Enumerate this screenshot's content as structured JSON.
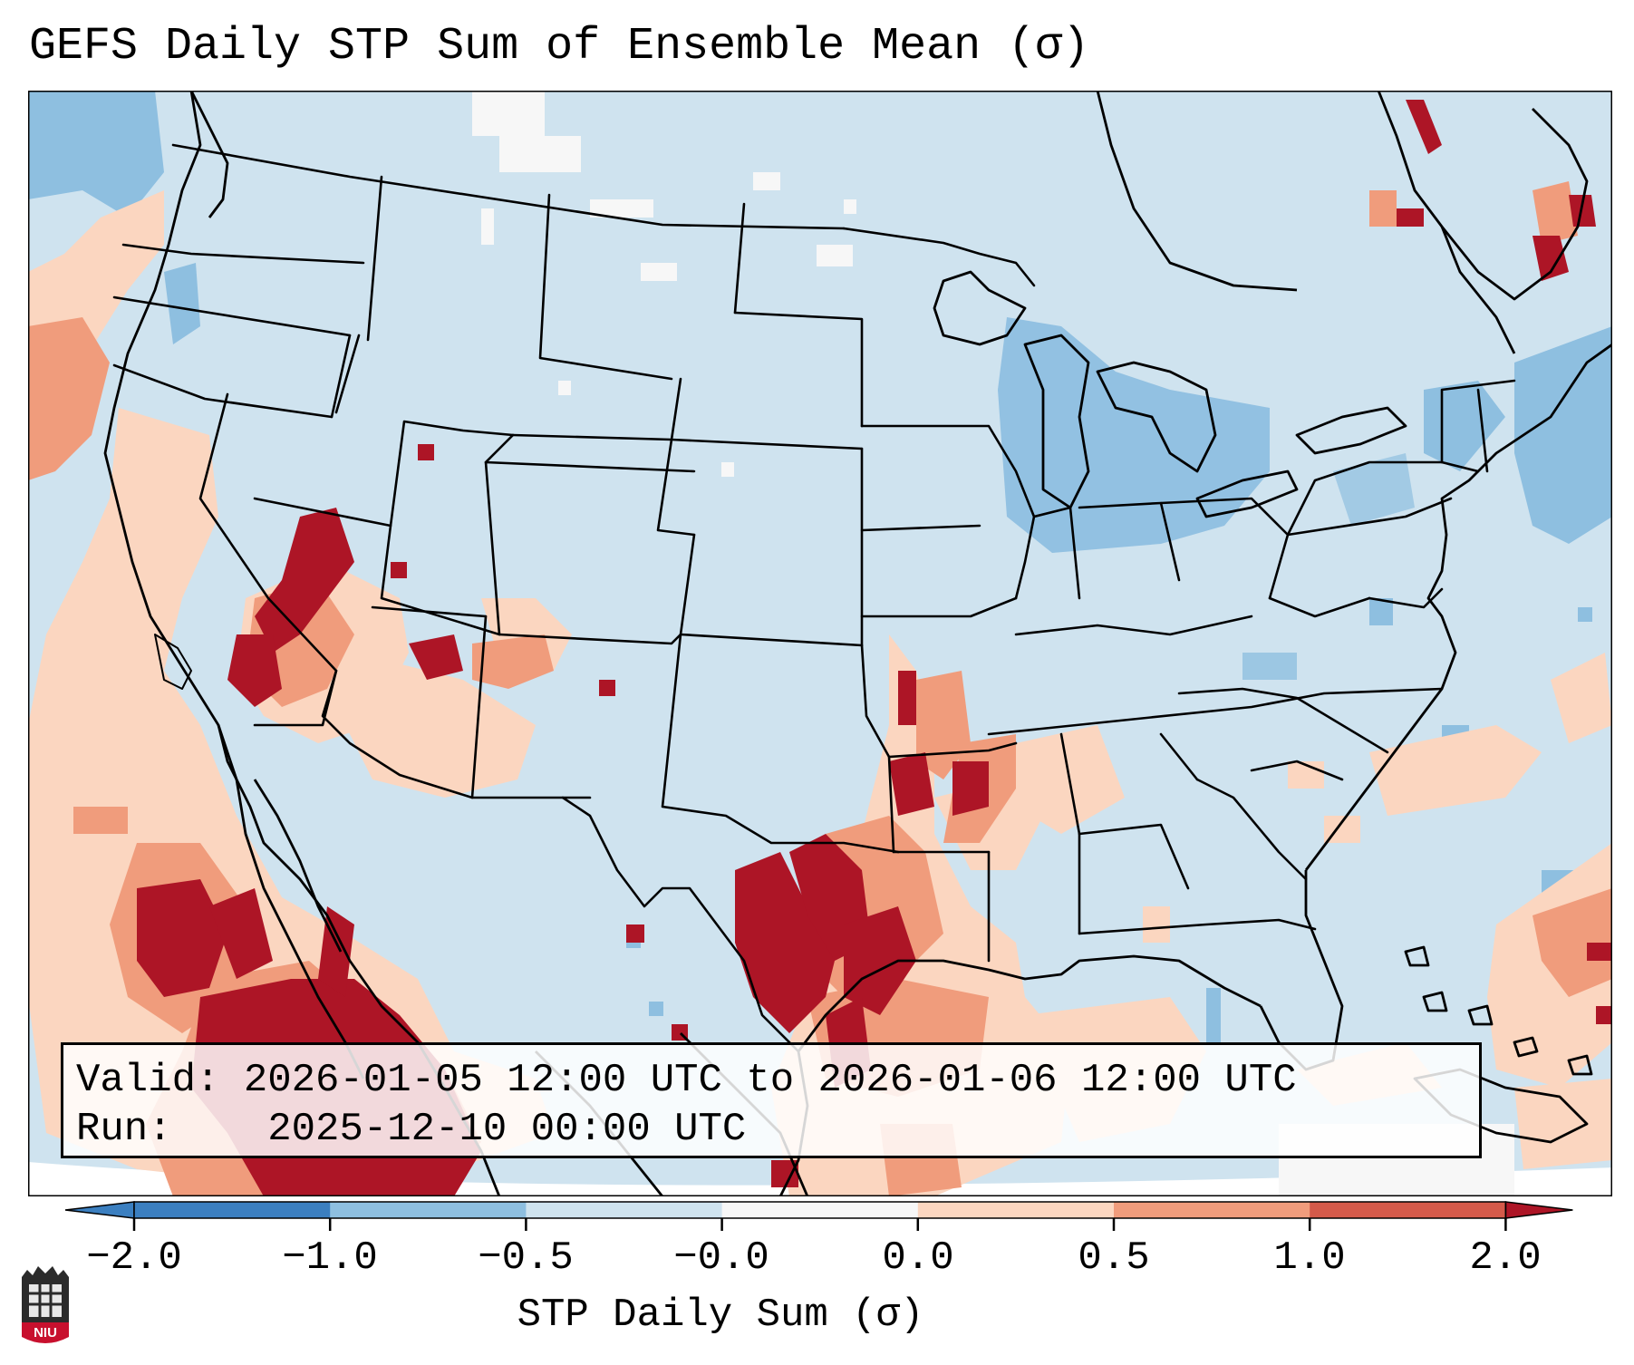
{
  "title": "GEFS Daily STP Sum of Ensemble Mean (σ)",
  "info": {
    "valid_label": "Valid:",
    "valid_value": "2026-01-05 12:00 UTC to 2026-01-06 12:00 UTC",
    "run_label": "Run:",
    "run_value": "2025-12-10 00:00 UTC"
  },
  "colorbar": {
    "label": "STP Daily Sum (σ)",
    "ticks": [
      "−2.0",
      "−1.0",
      "−0.5",
      "−0.0",
      "0.0",
      "0.5",
      "1.0",
      "2.0"
    ],
    "colors": [
      "#3b7fc0",
      "#8ebfe0",
      "#cfe3ef",
      "#f7f7f7",
      "#fbd6c0",
      "#f09c7c",
      "#d45a4a",
      "#ad1526"
    ]
  },
  "map": {
    "land_ocean_color": "#cfe3ef",
    "anomaly_regions": [
      {
        "region": "Texas / Louisiana Gulf coast",
        "value": 2.0
      },
      {
        "region": "Northwest Mexico / Baja",
        "value": 2.0
      },
      {
        "region": "Nevada / Utah",
        "value": 1.0
      },
      {
        "region": "Gulf of Mexico",
        "value": 0.5
      },
      {
        "region": "Great Lakes",
        "value": -1.0
      },
      {
        "region": "Gulf of Maine",
        "value": -1.0
      }
    ]
  },
  "logo": {
    "text": "NIU",
    "color": "#c8102e"
  }
}
